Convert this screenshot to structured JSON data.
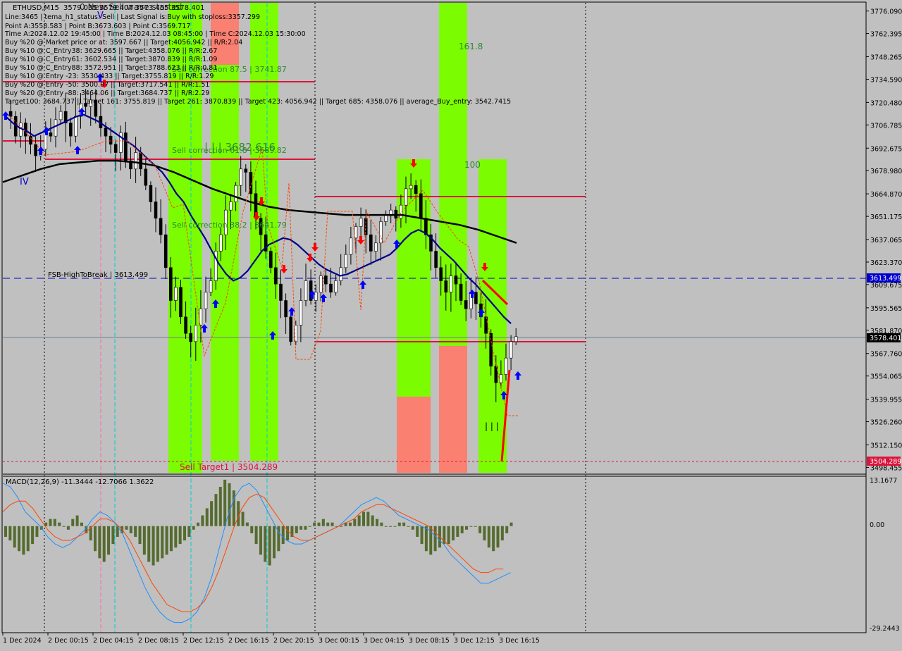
{
  "header": {
    "symbol": "ETHUSD,M15",
    "prices": "3579.035 3579.407 3573.455 3578.401",
    "overlay_status": "0 New Sell wave started",
    "lines": [
      "Line:3465 | tema_h1_status: Sell | Last Signal is:Buy with stoploss:3357.299",
      "Point A:3558.583 | Point B:3673.603 | Point C:3569.717",
      "Time A:2024.12.02 19:45:00 | Time B:2024.12.03 08:45:00 | Time C:2024.12.03 15:30:00",
      "Buy %20 @ Market price or at: 3597.667 || Target:4056.942 || R/R:2.04",
      "Buy %10 @ C_Entry38: 3629.665 || Target:4358.076 || R/R:2.67",
      "Buy %10 @ C_Entry61: 3602.534 || Target:3870.839 || R/R:1.09",
      "Buy %10 @ C_Entry88: 3572.951 || Target:3788.623 || R/R:0.81",
      "Buy %10 @ Entry -23: 3530.433 || Target:3755.819 || R/R:1.29",
      "Buy %20 @ Entry -50: 3500.07 || Target:3717.541 || R/R:1.51",
      "Buy %20 @ Entry -88: 3464.06 || Target:3684.737 || R/R:2.29",
      "Target100: 3684.737 || Target 161: 3755.819 || Target 261: 3870.839 || Target 423: 4056.942 || Target 685: 4358.076 || average_Buy_entry: 3542.7415"
    ]
  },
  "price_axis": {
    "ticks": [
      "3776.090",
      "3762.395",
      "3748.265",
      "3734.590",
      "3720.480",
      "3706.785",
      "3692.675",
      "3678.980",
      "3664.870",
      "3651.175",
      "3637.065",
      "3623.370",
      "3609.675",
      "3595.565",
      "3581.870",
      "3567.760",
      "3554.065",
      "3539.955",
      "3526.260",
      "3512.150",
      "3498.455"
    ],
    "current_price": "3578.401",
    "fsb_price": "3613.499",
    "sell_target_price": "3504.289"
  },
  "time_axis": {
    "ticks": [
      "1 Dec 2024",
      "2 Dec 00:15",
      "2 Dec 04:15",
      "2 Dec 08:15",
      "2 Dec 12:15",
      "2 Dec 16:15",
      "2 Dec 20:15",
      "3 Dec 00:15",
      "3 Dec 04:15",
      "3 Dec 08:15",
      "3 Dec 12:15",
      "3 Dec 16:15"
    ]
  },
  "annotations": {
    "sell_correction_875": "Sell correction 87.5 | 3741.87",
    "sell_correction_618": "Sell correction 61.8 | 3689.82",
    "sell_correction_382": "Sell correction 38.2 | 3641.79",
    "big_label": "| | | 3682.616",
    "fsb_label": "FSB-HighToBreak | 3613.499",
    "sell_target_label": "Sell Target1 | 3504.289",
    "fib_1618": "161.8",
    "fib_100": "100",
    "wave_iv": "IV",
    "wave_v": "V",
    "ticks_bottom": "| | |"
  },
  "macd": {
    "label": "MACD(12,26,9) -11.3444 -12.7066 1.3622",
    "ticks": [
      "13.1677",
      "0.00",
      "-29.2443"
    ]
  },
  "colors": {
    "background": "#c0c0c0",
    "buy_zone": "#7cfc00",
    "sell_zone": "#fa8072",
    "ma_fast": "#00008b",
    "ma_slow": "#000000",
    "level_red": "#dc143c",
    "fsb_blue": "#0000cd",
    "macd_hist": "#556b2f",
    "macd_main": "#1e90ff",
    "macd_signal": "#ff4500"
  },
  "chart_data": {
    "type": "candlestick",
    "symbol": "ETHUSD",
    "timeframe": "M15",
    "ylim": [
      3496.5,
      3778.5
    ],
    "time_ticks": [
      "1 Dec 2024",
      "2 Dec 00:15",
      "2 Dec 04:15",
      "2 Dec 08:15",
      "2 Dec 12:15",
      "2 Dec 16:15",
      "2 Dec 20:15",
      "3 Dec 00:15",
      "3 Dec 04:15",
      "3 Dec 08:15",
      "3 Dec 12:15",
      "3 Dec 16:15"
    ],
    "close_path": [
      3715,
      3712,
      3700,
      3708,
      3700,
      3695,
      3688,
      3692,
      3702,
      3700,
      3710,
      3715,
      3708,
      3700,
      3712,
      3720,
      3718,
      3722,
      3712,
      3705,
      3700,
      3695,
      3690,
      3702,
      3685,
      3680,
      3690,
      3680,
      3670,
      3660,
      3650,
      3640,
      3620,
      3600,
      3608,
      3590,
      3580,
      3575,
      3585,
      3595,
      3605,
      3612,
      3630,
      3640,
      3655,
      3660,
      3670,
      3680,
      3678,
      3665,
      3650,
      3640,
      3630,
      3620,
      3610,
      3600,
      3590,
      3575,
      3585,
      3600,
      3612,
      3600,
      3605,
      3615,
      3610,
      3605,
      3612,
      3620,
      3628,
      3638,
      3645,
      3650,
      3640,
      3630,
      3635,
      3648,
      3652,
      3655,
      3650,
      3658,
      3668,
      3670,
      3665,
      3650,
      3640,
      3630,
      3620,
      3612,
      3605,
      3615,
      3610,
      3600,
      3595,
      3605,
      3598,
      3590,
      3580,
      3560,
      3550,
      3555,
      3565,
      3575,
      3578
    ],
    "ma_fast": [
      3712,
      3708,
      3705,
      3703,
      3700,
      3702,
      3704,
      3706,
      3708,
      3710,
      3712,
      3713,
      3711,
      3709,
      3706,
      3703,
      3700,
      3697,
      3694,
      3690,
      3686,
      3682,
      3678,
      3672,
      3665,
      3660,
      3652,
      3645,
      3638,
      3630,
      3622,
      3616,
      3612,
      3614,
      3618,
      3624,
      3630,
      3634,
      3636,
      3638,
      3637,
      3634,
      3630,
      3626,
      3622,
      3619,
      3617,
      3615,
      3616,
      3618,
      3620,
      3622,
      3624,
      3626,
      3628,
      3632,
      3637,
      3641,
      3643,
      3641,
      3637,
      3632,
      3628,
      3624,
      3619,
      3614,
      3610,
      3605,
      3600,
      3595,
      3590,
      3586
    ],
    "ma_slow": [
      3672,
      3676,
      3680,
      3683,
      3684,
      3685,
      3685,
      3684,
      3682,
      3678,
      3673,
      3668,
      3664,
      3660,
      3657,
      3655,
      3654,
      3653,
      3652,
      3652,
      3652,
      3652,
      3650,
      3648,
      3646,
      3643,
      3639,
      3635
    ],
    "levels": {
      "sell_correction_875": 3741.87,
      "sell_correction_618": 3689.82,
      "sell_correction_382": 3641.79,
      "fsb_high_to_break": 3613.499,
      "sell_target1": 3504.289,
      "current_price": 3578.401
    },
    "macd": {
      "main": -11.3444,
      "signal": -12.7066,
      "histogram": 1.3622,
      "ylim": [
        -29.2443,
        13.1677
      ]
    }
  }
}
